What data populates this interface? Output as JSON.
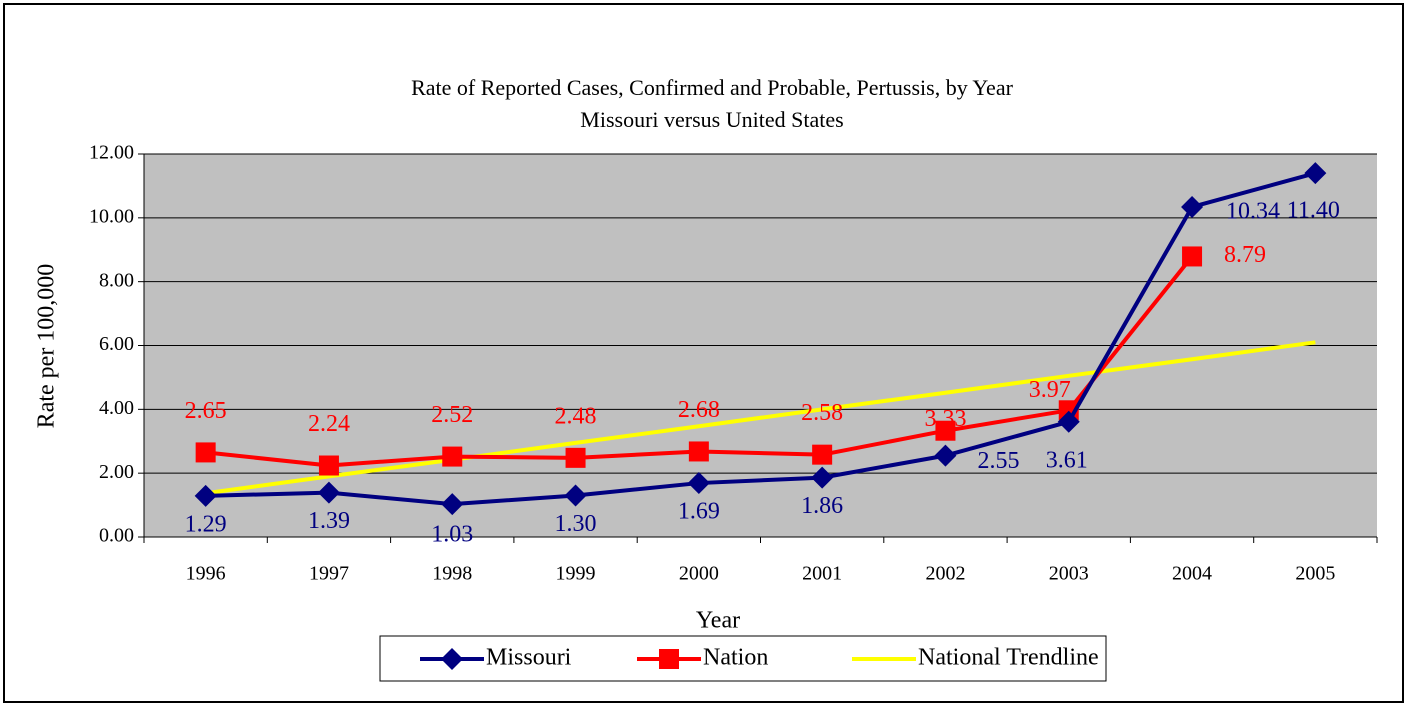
{
  "chart_data": {
    "type": "line",
    "title": "Rate of Reported Cases, Confirmed and Probable, Pertussis, by Year",
    "subtitle": "Missouri versus United States",
    "x_label": "Year",
    "y_label": "Rate per 100,000",
    "categories": [
      "1996",
      "1997",
      "1998",
      "1999",
      "2000",
      "2001",
      "2002",
      "2003",
      "2004",
      "2005"
    ],
    "series": [
      {
        "name": "Missouri",
        "color": "#000080",
        "marker": "diamond",
        "values": [
          1.29,
          1.39,
          1.03,
          1.3,
          1.69,
          1.86,
          2.55,
          3.61,
          10.34,
          11.4
        ],
        "value_labels": [
          "1.29",
          "1.39",
          "1.03",
          "1.30",
          "1.69",
          "1.86",
          "2.55",
          "3.61",
          "10.34",
          "11.40"
        ]
      },
      {
        "name": "Nation",
        "color": "#ff0000",
        "marker": "square",
        "values": [
          2.65,
          2.24,
          2.52,
          2.48,
          2.68,
          2.58,
          3.33,
          3.97,
          8.79,
          null
        ],
        "value_labels": [
          "2.65",
          "2.24",
          "2.52",
          "2.48",
          "2.68",
          "2.58",
          "3.33",
          "3.97",
          "8.79",
          null
        ]
      },
      {
        "name": "National Trendline",
        "color": "#ffff00",
        "marker": "none",
        "values": [
          1.37,
          1.9,
          2.42,
          2.95,
          3.47,
          4.0,
          4.52,
          5.05,
          5.57,
          6.1
        ]
      }
    ],
    "ylim": [
      0,
      12
    ],
    "yticks": [
      {
        "value": 0,
        "label": "0.00"
      },
      {
        "value": 2,
        "label": "2.00"
      },
      {
        "value": 4,
        "label": "4.00"
      },
      {
        "value": 6,
        "label": "6.00"
      },
      {
        "value": 8,
        "label": "8.00"
      },
      {
        "value": 10,
        "label": "10.00"
      },
      {
        "value": 12,
        "label": "12.00"
      }
    ],
    "grid": true,
    "legend": "bottom"
  }
}
